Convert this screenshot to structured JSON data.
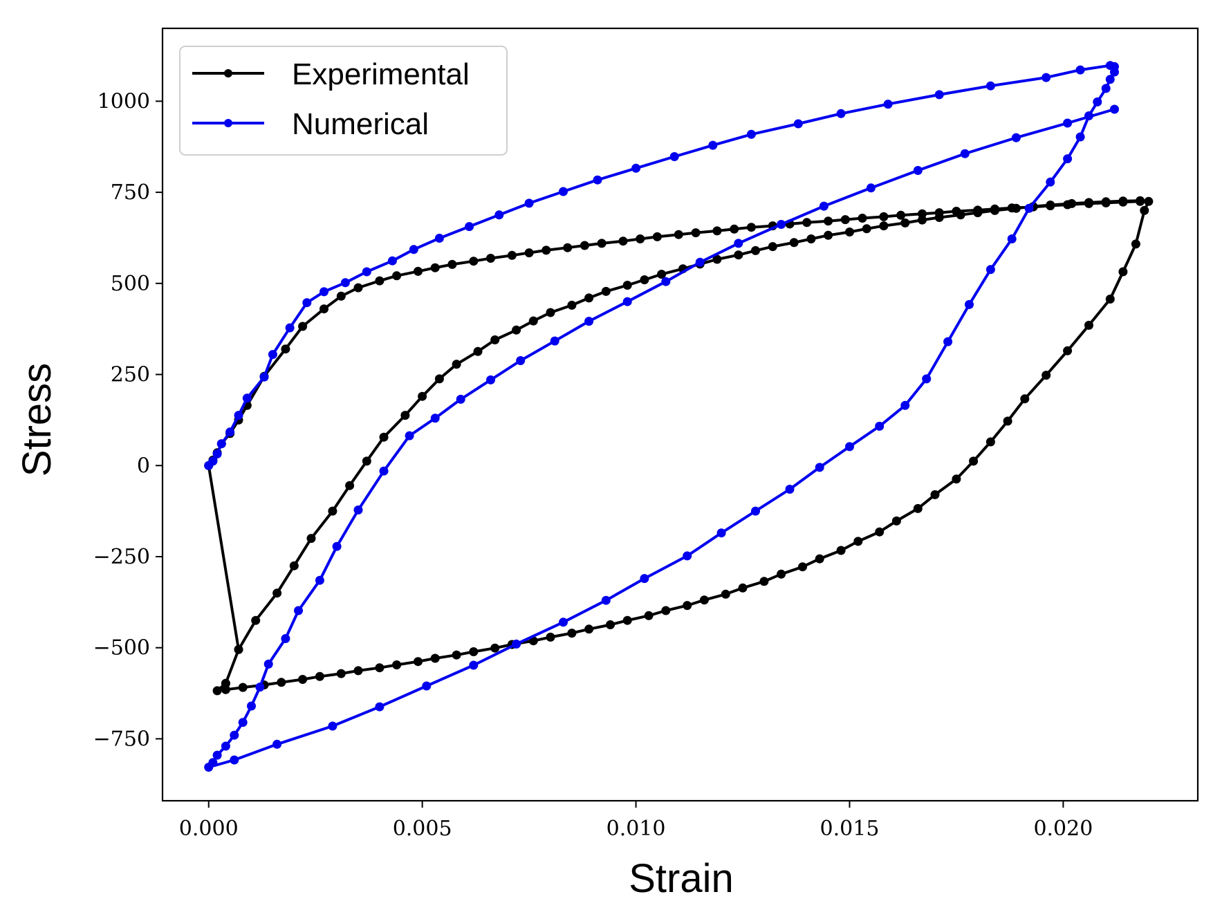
{
  "chart_data": {
    "type": "line",
    "title": "",
    "xlabel": "Strain",
    "ylabel": "Stress",
    "xlim": [
      -0.00108,
      0.02315
    ],
    "ylim": [
      -920,
      1200
    ],
    "xticks": [
      0.0,
      0.005,
      0.01,
      0.015,
      0.02
    ],
    "xtick_labels": [
      "0.000",
      "0.005",
      "0.010",
      "0.015",
      "0.020"
    ],
    "yticks": [
      -750,
      -500,
      -250,
      0,
      250,
      500,
      750,
      1000
    ],
    "ytick_labels": [
      "−750",
      "−500",
      "−250",
      "0",
      "250",
      "500",
      "750",
      "1000"
    ],
    "legend_position": "top-left",
    "series": [
      {
        "name": "Experimental",
        "color": "#000000",
        "points": [
          [
            0.0004,
            -598
          ],
          [
            0.0007,
            -505
          ],
          [
            0.0011,
            -425
          ],
          [
            0.0016,
            -350
          ],
          [
            0.002,
            -275
          ],
          [
            0.0024,
            -200
          ],
          [
            0.0029,
            -125
          ],
          [
            0.0033,
            -55
          ],
          [
            0.0037,
            12
          ],
          [
            0.0041,
            78
          ],
          [
            0.0046,
            138
          ],
          [
            0.005,
            190
          ],
          [
            0.0054,
            238
          ],
          [
            0.0058,
            278
          ],
          [
            0.0063,
            313
          ],
          [
            0.0067,
            345
          ],
          [
            0.0072,
            372
          ],
          [
            0.0076,
            397
          ],
          [
            0.008,
            420
          ],
          [
            0.0085,
            440
          ],
          [
            0.0089,
            460
          ],
          [
            0.0093,
            478
          ],
          [
            0.0098,
            495
          ],
          [
            0.0102,
            510
          ],
          [
            0.0106,
            525
          ],
          [
            0.0111,
            540
          ],
          [
            0.0115,
            553
          ],
          [
            0.0119,
            566
          ],
          [
            0.0124,
            578
          ],
          [
            0.0128,
            590
          ],
          [
            0.0132,
            601
          ],
          [
            0.0137,
            612
          ],
          [
            0.0141,
            622
          ],
          [
            0.0145,
            632
          ],
          [
            0.015,
            641
          ],
          [
            0.0154,
            650
          ],
          [
            0.0158,
            658
          ],
          [
            0.0163,
            666
          ],
          [
            0.0167,
            674
          ],
          [
            0.0171,
            681
          ],
          [
            0.0176,
            688
          ],
          [
            0.018,
            694
          ],
          [
            0.0184,
            700
          ],
          [
            0.0189,
            706
          ],
          [
            0.0193,
            711
          ],
          [
            0.0197,
            715
          ],
          [
            0.0202,
            719
          ],
          [
            0.0206,
            722
          ],
          [
            0.021,
            724
          ],
          [
            0.0214,
            726
          ],
          [
            0.0218,
            727
          ],
          [
            0.022,
            725
          ],
          [
            0.0219,
            700
          ],
          [
            0.0217,
            608
          ],
          [
            0.0214,
            532
          ],
          [
            0.0211,
            457
          ],
          [
            0.0206,
            385
          ],
          [
            0.0201,
            315
          ],
          [
            0.0196,
            248
          ],
          [
            0.0191,
            183
          ],
          [
            0.0187,
            122
          ],
          [
            0.0183,
            65
          ],
          [
            0.0179,
            12
          ],
          [
            0.0175,
            -37
          ],
          [
            0.017,
            -80
          ],
          [
            0.0166,
            -118
          ],
          [
            0.0161,
            -152
          ],
          [
            0.0157,
            -182
          ],
          [
            0.0152,
            -208
          ],
          [
            0.0148,
            -233
          ],
          [
            0.0143,
            -256
          ],
          [
            0.0139,
            -278
          ],
          [
            0.0134,
            -298
          ],
          [
            0.013,
            -318
          ],
          [
            0.0125,
            -336
          ],
          [
            0.0121,
            -353
          ],
          [
            0.0116,
            -369
          ],
          [
            0.0112,
            -384
          ],
          [
            0.0107,
            -398
          ],
          [
            0.0103,
            -412
          ],
          [
            0.0098,
            -425
          ],
          [
            0.0094,
            -437
          ],
          [
            0.0089,
            -449
          ],
          [
            0.0085,
            -460
          ],
          [
            0.008,
            -471
          ],
          [
            0.0076,
            -481
          ],
          [
            0.0071,
            -491
          ],
          [
            0.0067,
            -501
          ],
          [
            0.0062,
            -511
          ],
          [
            0.0058,
            -520
          ],
          [
            0.0053,
            -529
          ],
          [
            0.0049,
            -538
          ],
          [
            0.0044,
            -547
          ],
          [
            0.004,
            -555
          ],
          [
            0.0035,
            -563
          ],
          [
            0.0031,
            -571
          ],
          [
            0.0026,
            -579
          ],
          [
            0.0022,
            -587
          ],
          [
            0.0017,
            -595
          ],
          [
            0.0013,
            -602
          ],
          [
            0.0008,
            -609
          ],
          [
            0.0004,
            -615
          ],
          [
            0.0002,
            -618
          ],
          [
            0.0004,
            -598
          ],
          [
            0.0007,
            -505
          ],
          [
            0.0,
            0
          ],
          [
            0.0001,
            15
          ],
          [
            0.0002,
            35
          ],
          [
            0.0003,
            60
          ],
          [
            0.0005,
            88
          ],
          [
            0.0007,
            125
          ],
          [
            0.0009,
            165
          ],
          [
            0.0013,
            245
          ],
          [
            0.0018,
            320
          ],
          [
            0.0022,
            382
          ],
          [
            0.0027,
            430
          ],
          [
            0.0031,
            465
          ],
          [
            0.0035,
            488
          ],
          [
            0.004,
            507
          ],
          [
            0.0044,
            521
          ],
          [
            0.0049,
            533
          ],
          [
            0.0053,
            543
          ],
          [
            0.0057,
            552
          ],
          [
            0.0062,
            561
          ],
          [
            0.0066,
            569
          ],
          [
            0.0071,
            577
          ],
          [
            0.0075,
            584
          ],
          [
            0.0079,
            591
          ],
          [
            0.0084,
            598
          ],
          [
            0.0088,
            604
          ],
          [
            0.0092,
            610
          ],
          [
            0.0097,
            616
          ],
          [
            0.0101,
            622
          ],
          [
            0.0105,
            628
          ],
          [
            0.011,
            634
          ],
          [
            0.0114,
            639
          ],
          [
            0.0119,
            644
          ],
          [
            0.0123,
            649
          ],
          [
            0.0127,
            654
          ],
          [
            0.0132,
            658
          ],
          [
            0.0136,
            663
          ],
          [
            0.014,
            667
          ],
          [
            0.0145,
            671
          ],
          [
            0.0149,
            675
          ],
          [
            0.0153,
            679
          ],
          [
            0.0158,
            683
          ],
          [
            0.0162,
            687
          ],
          [
            0.0167,
            691
          ],
          [
            0.0171,
            694
          ],
          [
            0.0175,
            698
          ],
          [
            0.018,
            701
          ],
          [
            0.0184,
            704
          ],
          [
            0.0188,
            707
          ],
          [
            0.0193,
            710
          ],
          [
            0.0197,
            713
          ],
          [
            0.0201,
            716
          ],
          [
            0.0206,
            719
          ],
          [
            0.021,
            721
          ],
          [
            0.0214,
            723
          ],
          [
            0.0218,
            725
          ]
        ]
      },
      {
        "name": "Numerical",
        "color": "#0000ee",
        "points": [
          [
            0.0,
            0
          ],
          [
            0.0001,
            12
          ],
          [
            0.0002,
            32
          ],
          [
            0.0003,
            60
          ],
          [
            0.0005,
            92
          ],
          [
            0.0007,
            138
          ],
          [
            0.0009,
            185
          ],
          [
            0.0013,
            243
          ],
          [
            0.0015,
            305
          ],
          [
            0.0019,
            378
          ],
          [
            0.0023,
            447
          ],
          [
            0.0027,
            477
          ],
          [
            0.0032,
            502
          ],
          [
            0.0037,
            532
          ],
          [
            0.0043,
            562
          ],
          [
            0.0048,
            593
          ],
          [
            0.0054,
            624
          ],
          [
            0.0061,
            656
          ],
          [
            0.0068,
            688
          ],
          [
            0.0075,
            720
          ],
          [
            0.0083,
            752
          ],
          [
            0.0091,
            784
          ],
          [
            0.01,
            816
          ],
          [
            0.0109,
            848
          ],
          [
            0.0118,
            879
          ],
          [
            0.0127,
            909
          ],
          [
            0.0138,
            938
          ],
          [
            0.0148,
            966
          ],
          [
            0.0159,
            992
          ],
          [
            0.0171,
            1018
          ],
          [
            0.0183,
            1042
          ],
          [
            0.0196,
            1065
          ],
          [
            0.0204,
            1086
          ],
          [
            0.0211,
            1098
          ],
          [
            0.0212,
            1095
          ],
          [
            0.0212,
            1080
          ],
          [
            0.0211,
            1060
          ],
          [
            0.021,
            1035
          ],
          [
            0.0208,
            998
          ],
          [
            0.0206,
            960
          ],
          [
            0.0204,
            902
          ],
          [
            0.0201,
            842
          ],
          [
            0.0197,
            778
          ],
          [
            0.0192,
            706
          ],
          [
            0.0188,
            622
          ],
          [
            0.0183,
            538
          ],
          [
            0.0178,
            442
          ],
          [
            0.0173,
            340
          ],
          [
            0.0168,
            238
          ],
          [
            0.0163,
            165
          ],
          [
            0.0157,
            108
          ],
          [
            0.015,
            52
          ],
          [
            0.0143,
            -5
          ],
          [
            0.0136,
            -65
          ],
          [
            0.0128,
            -125
          ],
          [
            0.012,
            -185
          ],
          [
            0.0112,
            -248
          ],
          [
            0.0102,
            -310
          ],
          [
            0.0093,
            -370
          ],
          [
            0.0083,
            -430
          ],
          [
            0.0072,
            -490
          ],
          [
            0.0062,
            -548
          ],
          [
            0.0051,
            -605
          ],
          [
            0.004,
            -662
          ],
          [
            0.0029,
            -715
          ],
          [
            0.0016,
            -765
          ],
          [
            0.0006,
            -808
          ],
          [
            0.0,
            -828
          ],
          [
            0.0001,
            -815
          ],
          [
            0.0002,
            -795
          ],
          [
            0.0004,
            -770
          ],
          [
            0.0006,
            -740
          ],
          [
            0.0008,
            -705
          ],
          [
            0.001,
            -660
          ],
          [
            0.0012,
            -608
          ],
          [
            0.0014,
            -545
          ],
          [
            0.0018,
            -475
          ],
          [
            0.0021,
            -398
          ],
          [
            0.0026,
            -315
          ],
          [
            0.003,
            -222
          ],
          [
            0.0035,
            -122
          ],
          [
            0.0041,
            -15
          ],
          [
            0.0047,
            82
          ],
          [
            0.0053,
            130
          ],
          [
            0.0059,
            182
          ],
          [
            0.0066,
            235
          ],
          [
            0.0073,
            288
          ],
          [
            0.0081,
            342
          ],
          [
            0.0089,
            396
          ],
          [
            0.0098,
            450
          ],
          [
            0.0107,
            505
          ],
          [
            0.0115,
            558
          ],
          [
            0.0124,
            610
          ],
          [
            0.0134,
            662
          ],
          [
            0.0144,
            712
          ],
          [
            0.0155,
            762
          ],
          [
            0.0166,
            810
          ],
          [
            0.0177,
            856
          ],
          [
            0.0189,
            900
          ],
          [
            0.0201,
            940
          ],
          [
            0.0212,
            978
          ]
        ]
      }
    ]
  }
}
